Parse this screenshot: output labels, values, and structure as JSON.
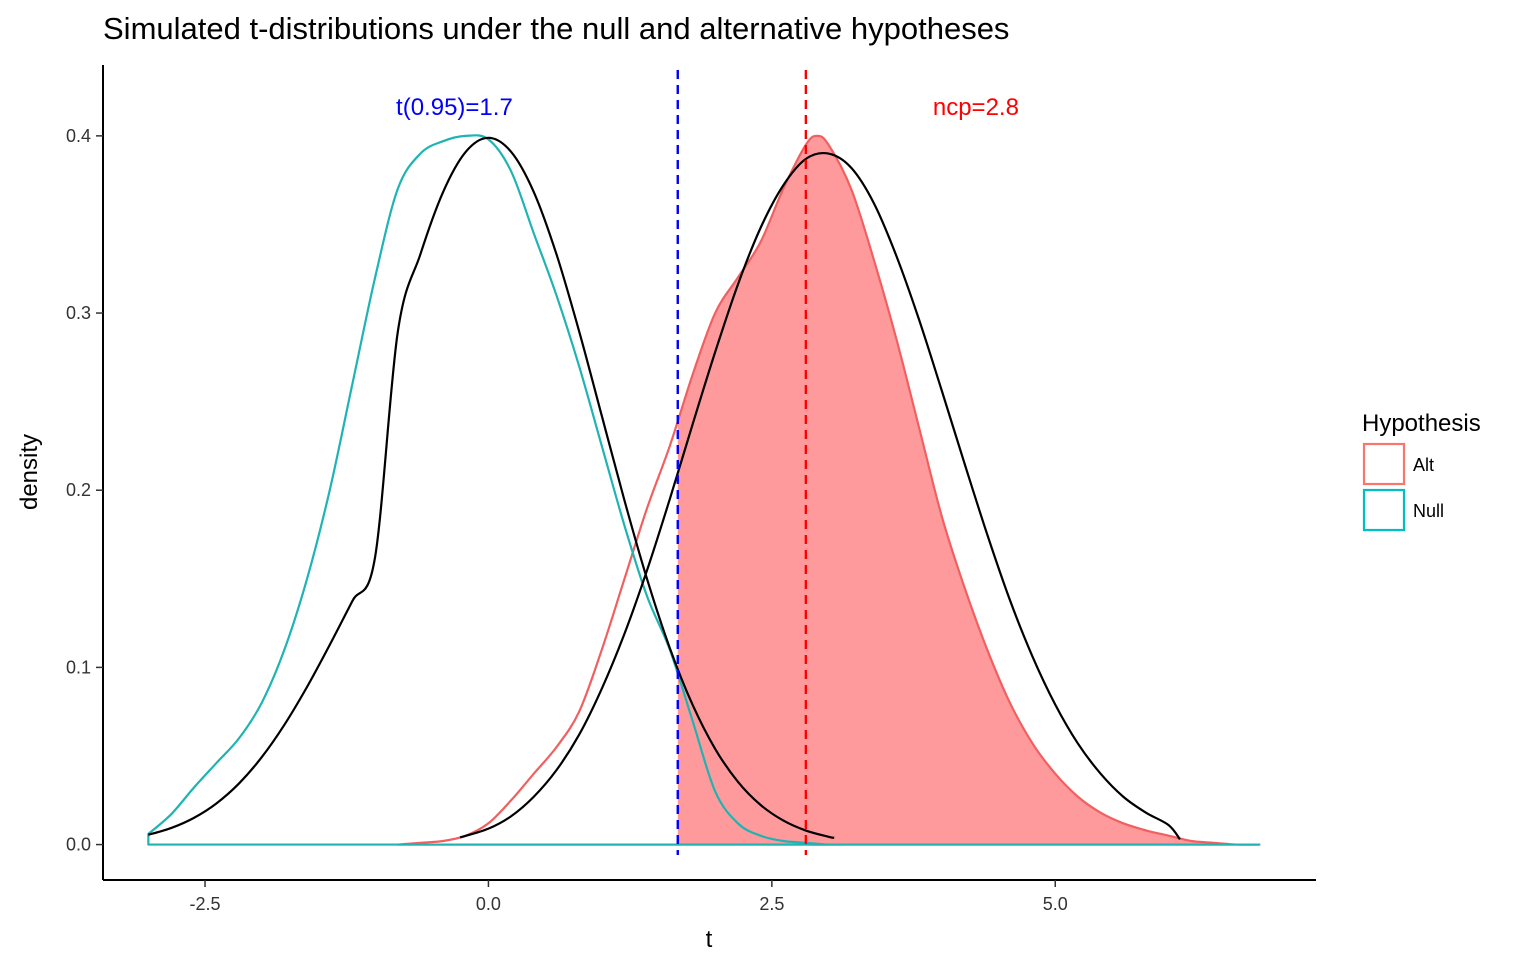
{
  "chart_data": {
    "type": "area",
    "title": "Simulated t-distributions under the null and alternative hypotheses",
    "xlabel": "t",
    "ylabel": "density",
    "xlim": [
      -3.4,
      7.3
    ],
    "ylim": [
      -0.02,
      0.44
    ],
    "x_ticks": [
      -2.5,
      0.0,
      2.5,
      5.0
    ],
    "x_tick_labels": [
      "-2.5",
      "0.0",
      "2.5",
      "5.0"
    ],
    "y_ticks": [
      0.0,
      0.1,
      0.2,
      0.3,
      0.4
    ],
    "y_tick_labels": [
      "0.0",
      "0.1",
      "0.2",
      "0.3",
      "0.4"
    ],
    "grid": false,
    "legend": {
      "title": "Hypothesis",
      "placement": "right",
      "entries": [
        {
          "label": "Alt",
          "color": "#F8766D"
        },
        {
          "label": "Null",
          "color": "#00BFC4"
        }
      ]
    },
    "series": [
      {
        "name": "Null",
        "kind": "empirical-density",
        "color": "#1FB3B3",
        "x": [
          -3.0,
          -2.8,
          -2.6,
          -2.4,
          -2.2,
          -2.0,
          -1.8,
          -1.6,
          -1.4,
          -1.2,
          -1.0,
          -0.8,
          -0.6,
          -0.4,
          -0.2,
          0.0,
          0.2,
          0.4,
          0.6,
          0.8,
          1.0,
          1.2,
          1.4,
          1.6,
          1.8,
          2.0,
          2.2,
          2.4,
          2.6,
          2.8,
          3.0,
          3.2,
          6.8
        ],
        "y": [
          0.006,
          0.017,
          0.032,
          0.046,
          0.06,
          0.08,
          0.11,
          0.15,
          0.2,
          0.26,
          0.32,
          0.37,
          0.39,
          0.397,
          0.4,
          0.398,
          0.38,
          0.345,
          0.31,
          0.27,
          0.225,
          0.18,
          0.14,
          0.11,
          0.07,
          0.03,
          0.012,
          0.005,
          0.002,
          0.001,
          0.0,
          0.0,
          0.0
        ]
      },
      {
        "name": "Alt",
        "kind": "empirical-density",
        "color": "#F06060",
        "x": [
          -0.8,
          -0.6,
          -0.4,
          -0.2,
          0.0,
          0.2,
          0.4,
          0.6,
          0.8,
          1.0,
          1.2,
          1.4,
          1.6,
          1.8,
          2.0,
          2.2,
          2.4,
          2.6,
          2.8,
          2.9,
          3.0,
          3.2,
          3.4,
          3.6,
          3.8,
          4.0,
          4.2,
          4.4,
          4.6,
          4.8,
          5.0,
          5.2,
          5.4,
          5.6,
          5.8,
          6.0,
          6.2,
          6.4,
          6.6,
          6.8
        ],
        "y": [
          0.0,
          0.001,
          0.002,
          0.005,
          0.012,
          0.025,
          0.04,
          0.055,
          0.075,
          0.11,
          0.15,
          0.19,
          0.225,
          0.265,
          0.3,
          0.32,
          0.34,
          0.37,
          0.395,
          0.4,
          0.395,
          0.37,
          0.33,
          0.285,
          0.235,
          0.185,
          0.145,
          0.11,
          0.08,
          0.057,
          0.04,
          0.027,
          0.018,
          0.012,
          0.008,
          0.005,
          0.002,
          0.001,
          0.0,
          0.0
        ]
      },
      {
        "name": "",
        "kind": "theoretical-null",
        "color": "#000000",
        "x": [
          -3.0,
          -2.8,
          -2.6,
          -2.4,
          -2.2,
          -2.0,
          -1.8,
          -1.6,
          -1.4,
          -1.2,
          -1.0,
          -0.8,
          -0.6,
          -0.4,
          -0.2,
          0.0,
          0.2,
          0.4,
          0.6,
          0.8,
          1.0,
          1.2,
          1.4,
          1.6,
          1.8,
          2.0,
          2.2,
          2.4,
          2.6,
          2.8,
          3.0,
          3.05
        ],
        "y": [
          0.0055,
          0.0093,
          0.015,
          0.0232,
          0.0345,
          0.0493,
          0.0676,
          0.089,
          0.1127,
          0.1375,
          0.1622,
          0.2892,
          0.3332,
          0.3683,
          0.391,
          0.3989,
          0.391,
          0.3683,
          0.3332,
          0.2897,
          0.242,
          0.1942,
          0.1497,
          0.1109,
          0.079,
          0.054,
          0.0355,
          0.0224,
          0.0136,
          0.0079,
          0.0044,
          0.0038
        ]
      },
      {
        "name": "",
        "kind": "theoretical-alt",
        "color": "#000000",
        "x": [
          -0.25,
          0.0,
          0.2,
          0.4,
          0.6,
          0.8,
          1.0,
          1.2,
          1.4,
          1.6,
          1.8,
          2.0,
          2.2,
          2.4,
          2.6,
          2.8,
          3.0,
          3.2,
          3.4,
          3.6,
          3.8,
          4.0,
          4.2,
          4.4,
          4.6,
          4.8,
          5.0,
          5.2,
          5.4,
          5.6,
          5.8,
          6.0,
          6.1
        ],
        "y": [
          0.004,
          0.009,
          0.016,
          0.027,
          0.042,
          0.062,
          0.088,
          0.119,
          0.155,
          0.195,
          0.237,
          0.278,
          0.316,
          0.348,
          0.372,
          0.387,
          0.39,
          0.382,
          0.362,
          0.332,
          0.296,
          0.256,
          0.215,
          0.175,
          0.138,
          0.106,
          0.079,
          0.057,
          0.04,
          0.027,
          0.018,
          0.011,
          0.003
        ]
      }
    ],
    "shaded_region": {
      "series": "Alt",
      "from_x": 1.67,
      "color": "#FF9A9C"
    },
    "vlines": [
      {
        "x": 1.67,
        "color": "#0000FF",
        "style": "dashed"
      },
      {
        "x": 2.8,
        "color": "#FF0000",
        "style": "dashed"
      }
    ],
    "annotations": [
      {
        "text": "t(0.95)=1.7",
        "x": -0.3,
        "y": 0.417,
        "color": "#0000FF"
      },
      {
        "text": "ncp=2.8",
        "x": 4.3,
        "y": 0.417,
        "color": "#FF0000"
      }
    ]
  }
}
